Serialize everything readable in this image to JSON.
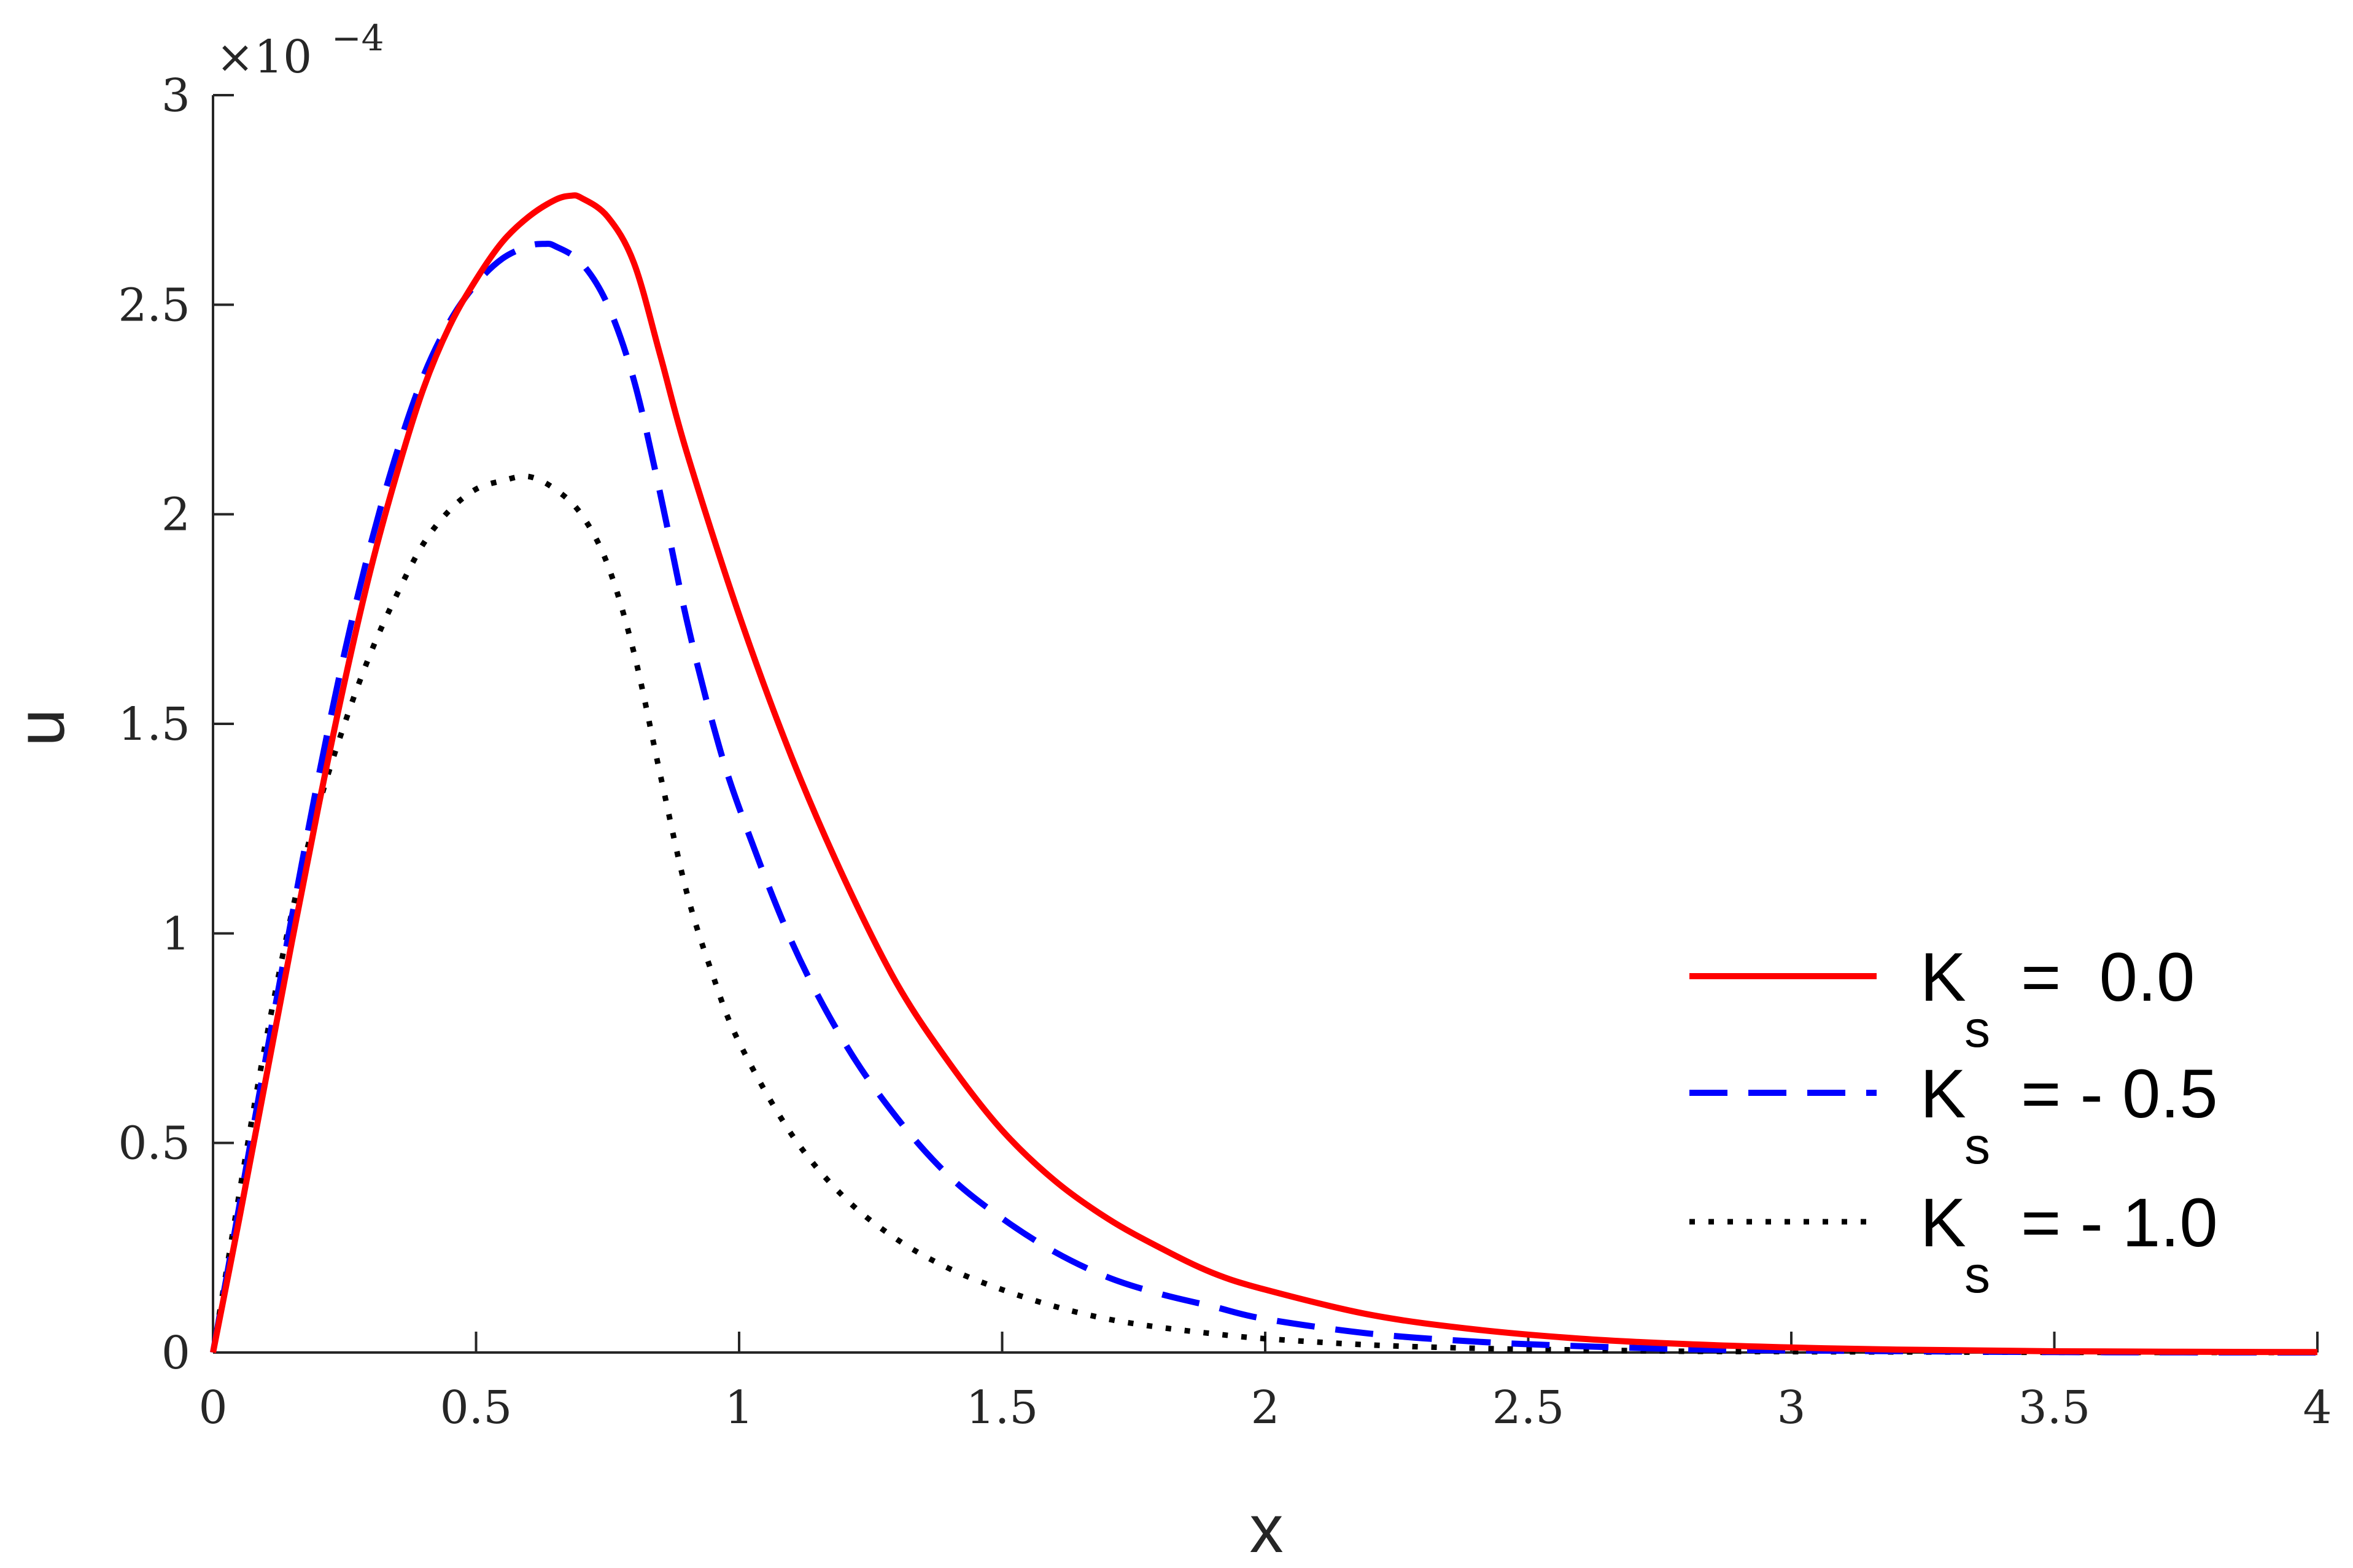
{
  "chart_data": {
    "type": "line",
    "title": "",
    "xlabel": "x",
    "ylabel": "u",
    "xlim": [
      0,
      4
    ],
    "ylim": [
      0,
      3
    ],
    "y_exponent": {
      "prefix": "×10",
      "power": "−4"
    },
    "xticks": [
      0,
      0.5,
      1,
      1.5,
      2,
      2.5,
      3,
      3.5,
      4
    ],
    "xtick_labels": [
      "0",
      "0.5",
      "1",
      "1.5",
      "2",
      "2.5",
      "3",
      "3.5",
      "4"
    ],
    "yticks": [
      0,
      0.5,
      1,
      1.5,
      2,
      2.5,
      3
    ],
    "ytick_labels": [
      "0",
      "0.5",
      "1",
      "1.5",
      "2",
      "2.5",
      "3"
    ],
    "grid": false,
    "legend_position": "right",
    "series": [
      {
        "name": "K_s = 0.0",
        "legend_main": "K",
        "legend_sub": "s",
        "legend_value": "=  0.0",
        "color": "#ff0000",
        "style": "solid",
        "x": [
          0,
          0.05,
          0.1,
          0.15,
          0.2,
          0.25,
          0.3,
          0.35,
          0.4,
          0.45,
          0.5,
          0.55,
          0.6,
          0.65,
          0.68,
          0.7,
          0.75,
          0.8,
          0.85,
          0.9,
          1.0,
          1.1,
          1.2,
          1.3,
          1.4,
          1.5,
          1.6,
          1.7,
          1.8,
          1.9,
          2.0,
          2.2,
          2.4,
          2.6,
          2.8,
          3.0,
          3.2,
          3.5,
          4.0
        ],
        "values": [
          0,
          0.32,
          0.65,
          0.98,
          1.3,
          1.6,
          1.87,
          2.1,
          2.3,
          2.45,
          2.56,
          2.65,
          2.71,
          2.75,
          2.76,
          2.755,
          2.71,
          2.6,
          2.38,
          2.15,
          1.76,
          1.42,
          1.13,
          0.88,
          0.69,
          0.53,
          0.41,
          0.32,
          0.25,
          0.19,
          0.15,
          0.09,
          0.055,
          0.033,
          0.02,
          0.012,
          0.007,
          0.003,
          0.001
        ]
      },
      {
        "name": "K_s = - 0.5",
        "legend_main": "K",
        "legend_sub": "s",
        "legend_value": "= - 0.5",
        "color": "#0000ff",
        "style": "dashed",
        "x": [
          0,
          0.05,
          0.1,
          0.15,
          0.2,
          0.25,
          0.3,
          0.35,
          0.4,
          0.45,
          0.5,
          0.55,
          0.6,
          0.63,
          0.65,
          0.7,
          0.75,
          0.8,
          0.85,
          0.9,
          0.95,
          1.0,
          1.1,
          1.2,
          1.3,
          1.4,
          1.5,
          1.6,
          1.7,
          1.8,
          1.9,
          2.0,
          2.2,
          2.4,
          2.6,
          2.8,
          3.0,
          3.5,
          4.0
        ],
        "values": [
          0,
          0.35,
          0.7,
          1.04,
          1.37,
          1.67,
          1.93,
          2.15,
          2.33,
          2.46,
          2.55,
          2.61,
          2.64,
          2.645,
          2.64,
          2.6,
          2.5,
          2.32,
          2.05,
          1.75,
          1.5,
          1.3,
          0.98,
          0.74,
          0.56,
          0.42,
          0.32,
          0.24,
          0.18,
          0.14,
          0.11,
          0.08,
          0.045,
          0.026,
          0.015,
          0.008,
          0.005,
          0.001,
          0
        ]
      },
      {
        "name": "K_s = - 1.0",
        "legend_main": "K",
        "legend_sub": "s",
        "legend_value": "= - 1.0",
        "color": "#000000",
        "style": "dotted",
        "x": [
          0,
          0.05,
          0.1,
          0.15,
          0.2,
          0.25,
          0.3,
          0.35,
          0.4,
          0.45,
          0.5,
          0.55,
          0.6,
          0.65,
          0.7,
          0.75,
          0.8,
          0.85,
          0.9,
          0.95,
          1.0,
          1.1,
          1.2,
          1.3,
          1.4,
          1.5,
          1.6,
          1.7,
          1.8,
          1.9,
          2.0,
          2.2,
          2.4,
          2.6,
          2.8,
          3.0,
          3.5,
          4.0
        ],
        "values": [
          0,
          0.38,
          0.74,
          1.05,
          1.3,
          1.5,
          1.67,
          1.81,
          1.93,
          2.01,
          2.06,
          2.08,
          2.09,
          2.06,
          2.0,
          1.88,
          1.67,
          1.38,
          1.1,
          0.9,
          0.74,
          0.52,
          0.37,
          0.27,
          0.2,
          0.15,
          0.11,
          0.08,
          0.06,
          0.045,
          0.033,
          0.018,
          0.01,
          0.006,
          0.003,
          0.002,
          0.0005,
          0
        ]
      }
    ]
  }
}
